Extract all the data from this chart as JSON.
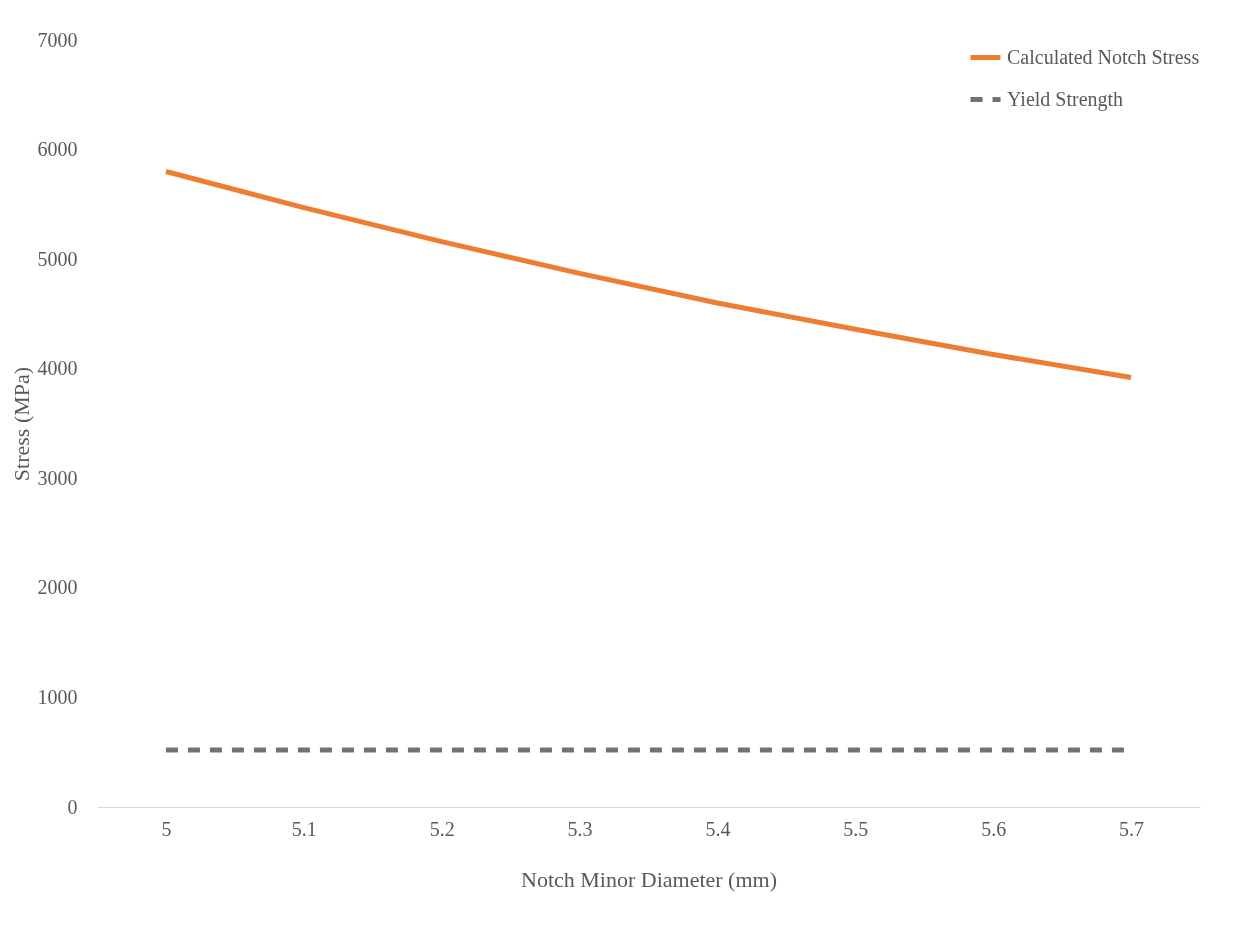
{
  "chart_data": {
    "type": "line",
    "xlabel": "Notch Minor Diameter (mm)",
    "ylabel": "Stress (MPa)",
    "categories": [
      "5",
      "5.1",
      "5.2",
      "5.3",
      "5.4",
      "5.5",
      "5.6",
      "5.7"
    ],
    "series": [
      {
        "name": "Calculated Notch Stress",
        "color": "#ed7d31",
        "line_style": "solid",
        "values": [
          5800,
          5470,
          5160,
          4870,
          4600,
          4360,
          4130,
          3920
        ]
      },
      {
        "name": "Yield Strength",
        "color": "#767171",
        "line_style": "dashed",
        "values": [
          520,
          520,
          520,
          520,
          520,
          520,
          520,
          520
        ]
      }
    ],
    "ylim": [
      0,
      7000
    ],
    "yticks": [
      0,
      1000,
      2000,
      3000,
      4000,
      5000,
      6000,
      7000
    ],
    "grid": false,
    "legend": "top right",
    "marker": "none"
  }
}
